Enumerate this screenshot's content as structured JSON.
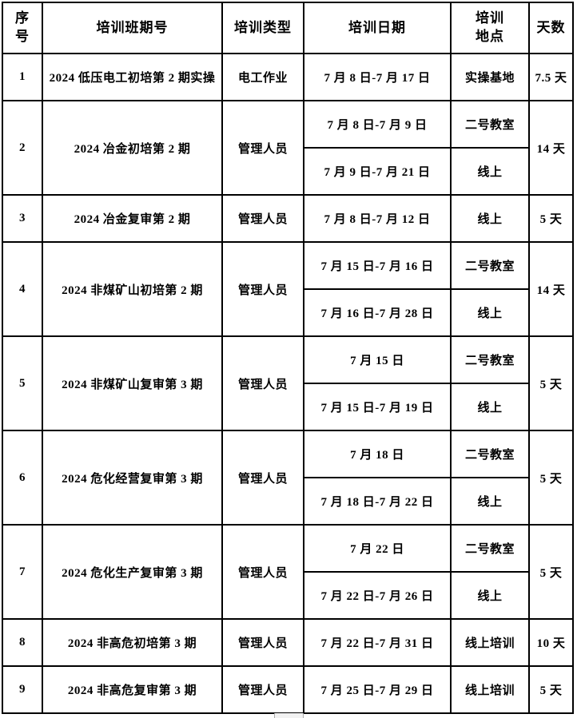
{
  "table": {
    "header_labels": [
      "序\n号",
      "培训班期号",
      "培训类型",
      "培训日期",
      "培训\n地点",
      "天数"
    ],
    "rows": [
      {
        "seq": "1",
        "class_name": "2024 低压电工初培第 2 期实操",
        "type": "电工作业",
        "sessions": [
          {
            "date": "7 月 8 日-7 月 17 日",
            "location": "实操基地"
          }
        ],
        "days": "7.5 天"
      },
      {
        "seq": "2",
        "class_name": "2024 冶金初培第 2 期",
        "type": "管理人员",
        "sessions": [
          {
            "date": "7 月 8 日-7 月 9 日",
            "location": "二号教室"
          },
          {
            "date": "7 月 9 日-7 月 21 日",
            "location": "线上"
          }
        ],
        "days": "14 天"
      },
      {
        "seq": "3",
        "class_name": "2024 冶金复审第 2 期",
        "type": "管理人员",
        "sessions": [
          {
            "date": "7 月 8 日-7 月 12 日",
            "location": "线上"
          }
        ],
        "days": "5 天"
      },
      {
        "seq": "4",
        "class_name": "2024 非煤矿山初培第 2 期",
        "type": "管理人员",
        "sessions": [
          {
            "date": "7 月 15 日-7 月 16 日",
            "location": "二号教室"
          },
          {
            "date": "7 月 16 日-7 月 28 日",
            "location": "线上"
          }
        ],
        "days": "14 天"
      },
      {
        "seq": "5",
        "class_name": "2024 非煤矿山复审第 3 期",
        "type": "管理人员",
        "sessions": [
          {
            "date": "7 月 15 日",
            "location": "二号教室"
          },
          {
            "date": "7 月 15 日-7 月 19 日",
            "location": "线上"
          }
        ],
        "days": "5 天"
      },
      {
        "seq": "6",
        "class_name": "2024 危化经营复审第 3 期",
        "type": "管理人员",
        "sessions": [
          {
            "date": "7 月 18 日",
            "location": "二号教室"
          },
          {
            "date": "7 月 18 日-7 月 22 日",
            "location": "线上"
          }
        ],
        "days": "5 天"
      },
      {
        "seq": "7",
        "class_name": "2024 危化生产复审第 3 期",
        "type": "管理人员",
        "sessions": [
          {
            "date": "7 月 22 日",
            "location": "二号教室"
          },
          {
            "date": "7 月 22 日-7 月 26 日",
            "location": "线上"
          }
        ],
        "days": "5 天"
      },
      {
        "seq": "8",
        "class_name": "2024 非高危初培第 3 期",
        "type": "管理人员",
        "sessions": [
          {
            "date": "7 月 22 日-7 月 31 日",
            "location": "线上培训"
          }
        ],
        "days": "10 天"
      },
      {
        "seq": "9",
        "class_name": "2024 非高危复审第 3 期",
        "type": "管理人员",
        "sessions": [
          {
            "date": "7 月 25 日-7 月 29 日",
            "location": "线上培训"
          }
        ],
        "days": "5 天"
      }
    ]
  },
  "colors": {
    "border": "#000000",
    "text": "#000000",
    "background": "#ffffff",
    "scrollbar_thumb": "#f2f2f2"
  }
}
